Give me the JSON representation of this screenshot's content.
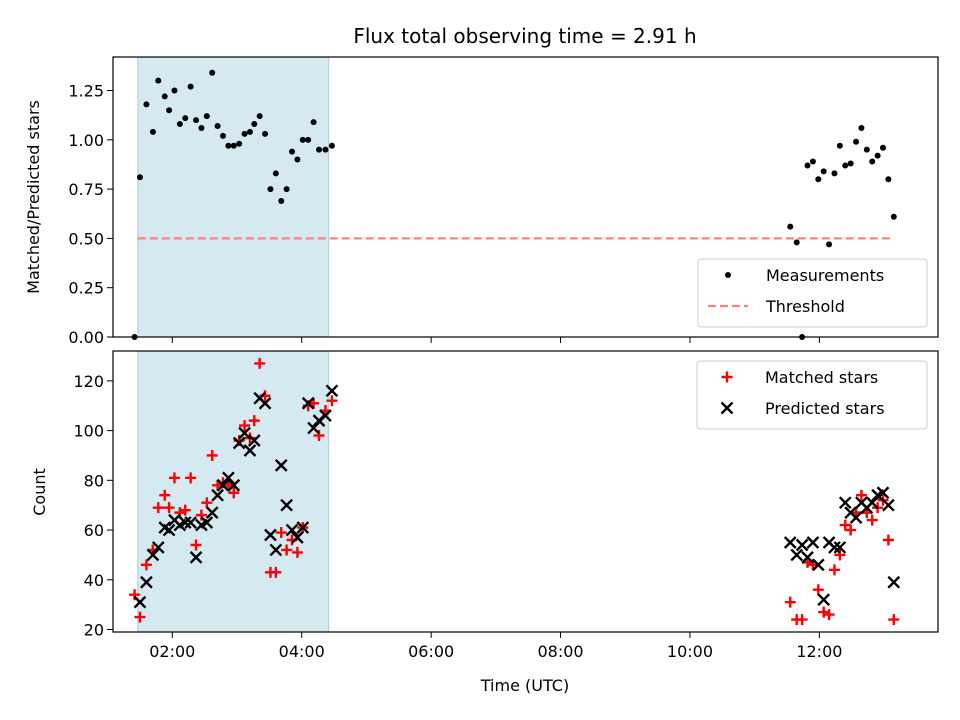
{
  "chart_data": [
    {
      "type": "scatter",
      "title": "Flux total observing time = 2.91 h",
      "xlabel": "",
      "ylabel": "Matched/Predicted stars",
      "xlim": [
        "01:05",
        "13:50"
      ],
      "ylim": [
        0,
        1.42
      ],
      "yticks": [
        "0.00",
        "0.25",
        "0.50",
        "0.75",
        "1.00",
        "1.25"
      ],
      "shaded_span": {
        "x": [
          "01:28",
          "04:25"
        ],
        "color": "#d4e9f0"
      },
      "legend_position": "lower right",
      "series": [
        {
          "name": "Measurements",
          "marker": "dot",
          "color": "#000000",
          "points": [
            {
              "x": "01:25",
              "y": 0.0
            },
            {
              "x": "01:30",
              "y": 0.81
            },
            {
              "x": "01:36",
              "y": 1.18
            },
            {
              "x": "01:42",
              "y": 1.04
            },
            {
              "x": "01:47",
              "y": 1.3
            },
            {
              "x": "01:53",
              "y": 1.22
            },
            {
              "x": "01:57",
              "y": 1.15
            },
            {
              "x": "02:02",
              "y": 1.25
            },
            {
              "x": "02:07",
              "y": 1.08
            },
            {
              "x": "02:12",
              "y": 1.11
            },
            {
              "x": "02:17",
              "y": 1.27
            },
            {
              "x": "02:22",
              "y": 1.1
            },
            {
              "x": "02:27",
              "y": 1.06
            },
            {
              "x": "02:32",
              "y": 1.12
            },
            {
              "x": "02:37",
              "y": 1.34
            },
            {
              "x": "02:42",
              "y": 1.07
            },
            {
              "x": "02:47",
              "y": 1.02
            },
            {
              "x": "02:52",
              "y": 0.97
            },
            {
              "x": "02:57",
              "y": 0.97
            },
            {
              "x": "03:02",
              "y": 0.98
            },
            {
              "x": "03:07",
              "y": 1.03
            },
            {
              "x": "03:12",
              "y": 1.04
            },
            {
              "x": "03:16",
              "y": 1.08
            },
            {
              "x": "03:21",
              "y": 1.12
            },
            {
              "x": "03:26",
              "y": 1.03
            },
            {
              "x": "03:31",
              "y": 0.75
            },
            {
              "x": "03:36",
              "y": 0.83
            },
            {
              "x": "03:41",
              "y": 0.69
            },
            {
              "x": "03:46",
              "y": 0.75
            },
            {
              "x": "03:51",
              "y": 0.94
            },
            {
              "x": "03:56",
              "y": 0.9
            },
            {
              "x": "04:01",
              "y": 1.0
            },
            {
              "x": "04:06",
              "y": 1.0
            },
            {
              "x": "04:11",
              "y": 1.09
            },
            {
              "x": "04:16",
              "y": 0.95
            },
            {
              "x": "04:22",
              "y": 0.95
            },
            {
              "x": "04:28",
              "y": 0.97
            },
            {
              "x": "11:33",
              "y": 0.56
            },
            {
              "x": "11:39",
              "y": 0.48
            },
            {
              "x": "11:44",
              "y": 0.0
            },
            {
              "x": "11:49",
              "y": 0.87
            },
            {
              "x": "11:54",
              "y": 0.89
            },
            {
              "x": "11:59",
              "y": 0.8
            },
            {
              "x": "12:04",
              "y": 0.84
            },
            {
              "x": "12:09",
              "y": 0.47
            },
            {
              "x": "12:14",
              "y": 0.83
            },
            {
              "x": "12:19",
              "y": 0.97
            },
            {
              "x": "12:24",
              "y": 0.87
            },
            {
              "x": "12:29",
              "y": 0.88
            },
            {
              "x": "12:34",
              "y": 0.99
            },
            {
              "x": "12:39",
              "y": 1.06
            },
            {
              "x": "12:44",
              "y": 0.95
            },
            {
              "x": "12:49",
              "y": 0.89
            },
            {
              "x": "12:54",
              "y": 0.92
            },
            {
              "x": "12:59",
              "y": 0.96
            },
            {
              "x": "13:04",
              "y": 0.8
            },
            {
              "x": "13:09",
              "y": 0.61
            }
          ]
        },
        {
          "name": "Threshold",
          "marker": "dashed-line",
          "color": "#ff7f7f",
          "points": [
            {
              "x": "01:28",
              "y": 0.5
            },
            {
              "x": "13:06",
              "y": 0.5
            }
          ]
        }
      ]
    },
    {
      "type": "scatter",
      "title": "",
      "xlabel": "Time (UTC)",
      "ylabel": "Count",
      "xlim": [
        "01:05",
        "13:50"
      ],
      "ylim": [
        19,
        132
      ],
      "xticks": [
        "02:00",
        "04:00",
        "06:00",
        "08:00",
        "10:00",
        "12:00"
      ],
      "yticks": [
        "20",
        "40",
        "60",
        "80",
        "100",
        "120"
      ],
      "shaded_span": {
        "x": [
          "01:28",
          "04:25"
        ],
        "color": "#d4e9f0"
      },
      "legend_position": "upper right",
      "series": [
        {
          "name": "Matched stars",
          "marker": "plus",
          "color": "#ff0000",
          "points": [
            {
              "x": "01:25",
              "y": 34
            },
            {
              "x": "01:30",
              "y": 25
            },
            {
              "x": "01:36",
              "y": 46
            },
            {
              "x": "01:42",
              "y": 52
            },
            {
              "x": "01:47",
              "y": 69
            },
            {
              "x": "01:53",
              "y": 74
            },
            {
              "x": "01:57",
              "y": 69
            },
            {
              "x": "02:02",
              "y": 81
            },
            {
              "x": "02:07",
              "y": 67
            },
            {
              "x": "02:12",
              "y": 68
            },
            {
              "x": "02:17",
              "y": 81
            },
            {
              "x": "02:22",
              "y": 54
            },
            {
              "x": "02:27",
              "y": 66
            },
            {
              "x": "02:32",
              "y": 71
            },
            {
              "x": "02:37",
              "y": 90
            },
            {
              "x": "02:42",
              "y": 78
            },
            {
              "x": "02:47",
              "y": 79
            },
            {
              "x": "02:52",
              "y": 78
            },
            {
              "x": "02:57",
              "y": 75
            },
            {
              "x": "03:02",
              "y": 96
            },
            {
              "x": "03:07",
              "y": 102
            },
            {
              "x": "03:12",
              "y": 97
            },
            {
              "x": "03:16",
              "y": 104
            },
            {
              "x": "03:21",
              "y": 127
            },
            {
              "x": "03:26",
              "y": 114
            },
            {
              "x": "03:31",
              "y": 43
            },
            {
              "x": "03:36",
              "y": 43
            },
            {
              "x": "03:41",
              "y": 59
            },
            {
              "x": "03:46",
              "y": 52
            },
            {
              "x": "03:51",
              "y": 56
            },
            {
              "x": "03:56",
              "y": 51
            },
            {
              "x": "04:01",
              "y": 61
            },
            {
              "x": "04:06",
              "y": 110
            },
            {
              "x": "04:11",
              "y": 111
            },
            {
              "x": "04:16",
              "y": 98
            },
            {
              "x": "04:22",
              "y": 108
            },
            {
              "x": "04:28",
              "y": 112
            },
            {
              "x": "11:33",
              "y": 31
            },
            {
              "x": "11:39",
              "y": 24
            },
            {
              "x": "11:44",
              "y": 24
            },
            {
              "x": "11:49",
              "y": 47
            },
            {
              "x": "11:54",
              "y": 46
            },
            {
              "x": "11:59",
              "y": 36
            },
            {
              "x": "12:04",
              "y": 27
            },
            {
              "x": "12:09",
              "y": 26
            },
            {
              "x": "12:14",
              "y": 44
            },
            {
              "x": "12:19",
              "y": 50
            },
            {
              "x": "12:24",
              "y": 62
            },
            {
              "x": "12:29",
              "y": 60
            },
            {
              "x": "12:34",
              "y": 67
            },
            {
              "x": "12:39",
              "y": 74
            },
            {
              "x": "12:44",
              "y": 67
            },
            {
              "x": "12:49",
              "y": 64
            },
            {
              "x": "12:54",
              "y": 69
            },
            {
              "x": "12:59",
              "y": 72
            },
            {
              "x": "13:04",
              "y": 56
            },
            {
              "x": "13:09",
              "y": 24
            }
          ]
        },
        {
          "name": "Predicted stars",
          "marker": "x",
          "color": "#000000",
          "points": [
            {
              "x": "01:30",
              "y": 31
            },
            {
              "x": "01:36",
              "y": 39
            },
            {
              "x": "01:42",
              "y": 50
            },
            {
              "x": "01:47",
              "y": 53
            },
            {
              "x": "01:53",
              "y": 61
            },
            {
              "x": "01:57",
              "y": 60
            },
            {
              "x": "02:02",
              "y": 64
            },
            {
              "x": "02:07",
              "y": 62
            },
            {
              "x": "02:12",
              "y": 63
            },
            {
              "x": "02:17",
              "y": 63
            },
            {
              "x": "02:22",
              "y": 49
            },
            {
              "x": "02:27",
              "y": 62
            },
            {
              "x": "02:32",
              "y": 63
            },
            {
              "x": "02:37",
              "y": 67
            },
            {
              "x": "02:42",
              "y": 74
            },
            {
              "x": "02:47",
              "y": 78
            },
            {
              "x": "02:52",
              "y": 81
            },
            {
              "x": "02:57",
              "y": 78
            },
            {
              "x": "03:02",
              "y": 95
            },
            {
              "x": "03:07",
              "y": 99
            },
            {
              "x": "03:12",
              "y": 92
            },
            {
              "x": "03:16",
              "y": 96
            },
            {
              "x": "03:21",
              "y": 113
            },
            {
              "x": "03:26",
              "y": 111
            },
            {
              "x": "03:31",
              "y": 58
            },
            {
              "x": "03:36",
              "y": 52
            },
            {
              "x": "03:41",
              "y": 86
            },
            {
              "x": "03:46",
              "y": 70
            },
            {
              "x": "03:51",
              "y": 60
            },
            {
              "x": "03:56",
              "y": 57
            },
            {
              "x": "04:01",
              "y": 61
            },
            {
              "x": "04:06",
              "y": 111
            },
            {
              "x": "04:11",
              "y": 101
            },
            {
              "x": "04:16",
              "y": 104
            },
            {
              "x": "04:22",
              "y": 106
            },
            {
              "x": "04:28",
              "y": 116
            },
            {
              "x": "11:33",
              "y": 55
            },
            {
              "x": "11:39",
              "y": 50
            },
            {
              "x": "11:44",
              "y": 54
            },
            {
              "x": "11:49",
              "y": 49
            },
            {
              "x": "11:54",
              "y": 55
            },
            {
              "x": "11:59",
              "y": 46
            },
            {
              "x": "12:04",
              "y": 32
            },
            {
              "x": "12:09",
              "y": 55
            },
            {
              "x": "12:14",
              "y": 53
            },
            {
              "x": "12:19",
              "y": 53
            },
            {
              "x": "12:24",
              "y": 71
            },
            {
              "x": "12:29",
              "y": 67
            },
            {
              "x": "12:34",
              "y": 65
            },
            {
              "x": "12:39",
              "y": 71
            },
            {
              "x": "12:44",
              "y": 69
            },
            {
              "x": "12:49",
              "y": 71
            },
            {
              "x": "12:54",
              "y": 74
            },
            {
              "x": "12:59",
              "y": 75
            },
            {
              "x": "13:04",
              "y": 70
            },
            {
              "x": "13:09",
              "y": 39
            }
          ]
        }
      ]
    }
  ]
}
